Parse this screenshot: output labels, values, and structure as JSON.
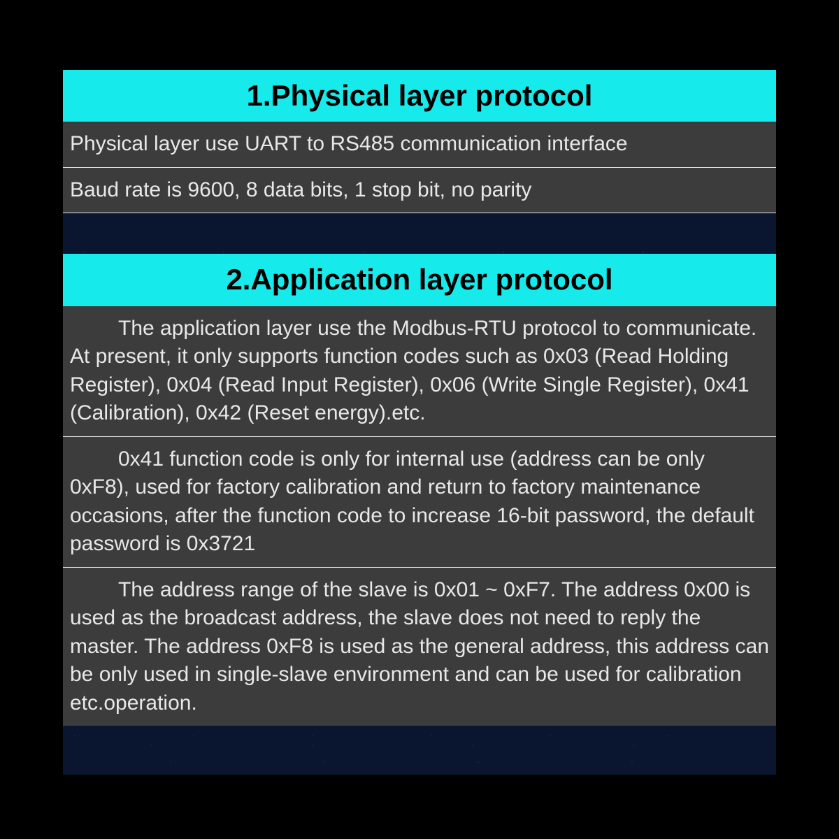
{
  "styling": {
    "page_background": "#000000",
    "content_background": "#0a1530",
    "header_background": "#16eaea",
    "header_text_color": "#000000",
    "row_background": "#3c3c3c",
    "row_text_color": "#e8e8e8",
    "divider_color": "#e8e8e8",
    "header_fontsize": 42,
    "body_fontsize": 30,
    "font_family": "Arial, Helvetica, sans-serif"
  },
  "sections": [
    {
      "title": "1.Physical layer protocol",
      "rows": [
        {
          "text": "Physical layer use UART to RS485 communication interface",
          "indent": false
        },
        {
          "text": "Baud rate is 9600, 8 data bits, 1 stop bit, no parity",
          "indent": false
        }
      ]
    },
    {
      "title": "2.Application layer protocol",
      "rows": [
        {
          "text": "The application layer use the Modbus-RTU protocol to communicate. At present, it only supports function codes such as 0x03 (Read Holding Register), 0x04 (Read Input Register), 0x06 (Write Single Register), 0x41 (Calibration), 0x42 (Reset energy).etc.",
          "indent": true
        },
        {
          "text": "0x41 function code is only for internal use (address can be only 0xF8), used for factory calibration and return to factory maintenance occasions, after the function code to increase 16-bit password, the default password is 0x3721",
          "indent": true
        },
        {
          "text": "The address range of the slave is 0x01 ~ 0xF7. The address 0x00 is used as the broadcast address, the slave does not need to reply the master. The address 0xF8 is used as the general address, this address can be only used in single-slave environment and can be used for calibration etc.operation.",
          "indent": true
        }
      ]
    }
  ]
}
